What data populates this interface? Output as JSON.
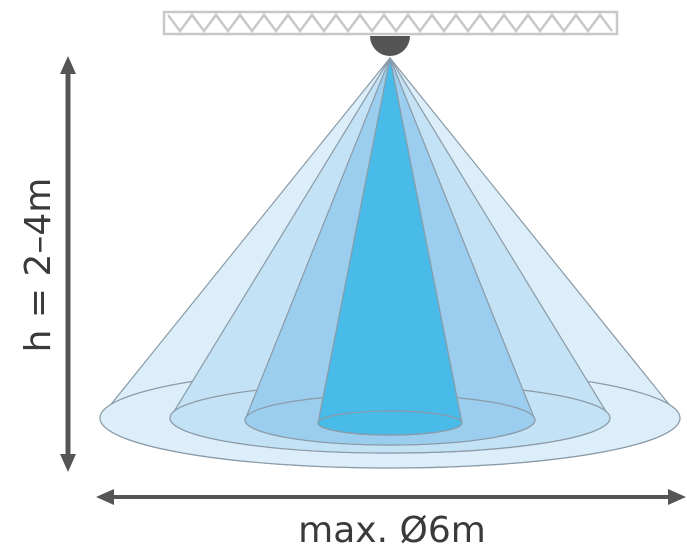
{
  "height_label": "h = 2–4m",
  "diameter_label": "max. Ø6m"
}
